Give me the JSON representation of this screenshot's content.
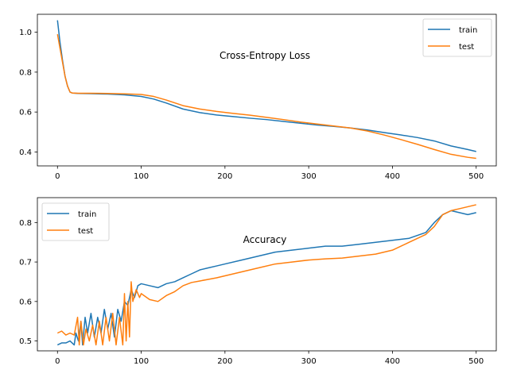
{
  "chart_data": [
    {
      "type": "line",
      "title": "Cross-Entropy Loss",
      "xlabel": "",
      "ylabel": "",
      "xlim": [
        -24,
        524
      ],
      "ylim": [
        0.33,
        1.09
      ],
      "xticks": [
        0,
        100,
        200,
        300,
        400,
        500
      ],
      "yticks": [
        0.4,
        0.6,
        0.8,
        1.0
      ],
      "ytick_labels": [
        "0.4",
        "0.6",
        "0.8",
        "1.0"
      ],
      "grid": false,
      "legend": "top-right",
      "series": [
        {
          "name": "train",
          "color": "#1f77b4",
          "x": [
            0,
            3,
            6,
            9,
            12,
            15,
            18,
            25,
            40,
            60,
            80,
            100,
            115,
            130,
            150,
            170,
            190,
            210,
            230,
            250,
            270,
            290,
            310,
            330,
            350,
            370,
            390,
            410,
            430,
            450,
            470,
            490,
            500
          ],
          "y": [
            1.06,
            0.95,
            0.86,
            0.78,
            0.73,
            0.7,
            0.695,
            0.693,
            0.692,
            0.69,
            0.686,
            0.678,
            0.665,
            0.645,
            0.615,
            0.597,
            0.585,
            0.577,
            0.569,
            0.562,
            0.553,
            0.544,
            0.535,
            0.528,
            0.52,
            0.51,
            0.497,
            0.485,
            0.472,
            0.455,
            0.43,
            0.412,
            0.402
          ]
        },
        {
          "name": "test",
          "color": "#ff7f0e",
          "x": [
            0,
            3,
            6,
            9,
            12,
            15,
            18,
            25,
            40,
            60,
            80,
            100,
            115,
            130,
            150,
            170,
            190,
            210,
            230,
            250,
            270,
            290,
            310,
            330,
            350,
            370,
            390,
            410,
            430,
            450,
            470,
            490,
            500
          ],
          "y": [
            0.99,
            0.92,
            0.85,
            0.78,
            0.73,
            0.7,
            0.695,
            0.694,
            0.694,
            0.693,
            0.691,
            0.688,
            0.678,
            0.66,
            0.632,
            0.615,
            0.603,
            0.593,
            0.584,
            0.573,
            0.562,
            0.55,
            0.54,
            0.53,
            0.52,
            0.505,
            0.485,
            0.462,
            0.438,
            0.412,
            0.388,
            0.373,
            0.368
          ]
        }
      ]
    },
    {
      "type": "line",
      "title": "Accuracy",
      "xlabel": "",
      "ylabel": "",
      "xlim": [
        -24,
        524
      ],
      "ylim": [
        0.475,
        0.863
      ],
      "xticks": [
        0,
        100,
        200,
        300,
        400,
        500
      ],
      "yticks": [
        0.5,
        0.6,
        0.7,
        0.8
      ],
      "ytick_labels": [
        "0.5",
        "0.6",
        "0.7",
        "0.8"
      ],
      "grid": false,
      "legend": "top-left",
      "series": [
        {
          "name": "train",
          "color": "#1f77b4",
          "x": [
            0,
            5,
            10,
            15,
            20,
            22,
            25,
            28,
            30,
            33,
            36,
            40,
            44,
            48,
            52,
            56,
            60,
            64,
            68,
            72,
            76,
            80,
            84,
            88,
            92,
            96,
            100,
            110,
            120,
            130,
            140,
            150,
            160,
            170,
            180,
            190,
            200,
            220,
            240,
            260,
            280,
            300,
            320,
            340,
            360,
            380,
            400,
            420,
            440,
            450,
            460,
            470,
            480,
            490,
            500
          ],
          "y": [
            0.49,
            0.495,
            0.495,
            0.5,
            0.49,
            0.52,
            0.5,
            0.55,
            0.49,
            0.56,
            0.52,
            0.57,
            0.51,
            0.56,
            0.52,
            0.58,
            0.53,
            0.57,
            0.51,
            0.58,
            0.55,
            0.6,
            0.59,
            0.63,
            0.61,
            0.64,
            0.645,
            0.64,
            0.635,
            0.645,
            0.65,
            0.66,
            0.67,
            0.68,
            0.685,
            0.69,
            0.695,
            0.705,
            0.715,
            0.725,
            0.73,
            0.735,
            0.74,
            0.74,
            0.745,
            0.75,
            0.755,
            0.76,
            0.775,
            0.8,
            0.82,
            0.83,
            0.825,
            0.82,
            0.825
          ]
        },
        {
          "name": "test",
          "color": "#ff7f0e",
          "x": [
            0,
            5,
            10,
            15,
            20,
            24,
            26,
            28,
            31,
            34,
            38,
            42,
            46,
            50,
            54,
            58,
            62,
            66,
            70,
            74,
            78,
            80,
            82,
            84,
            86,
            88,
            90,
            94,
            98,
            100,
            110,
            120,
            130,
            140,
            150,
            160,
            170,
            180,
            190,
            200,
            220,
            240,
            260,
            280,
            300,
            320,
            340,
            360,
            380,
            400,
            420,
            440,
            450,
            460,
            470,
            480,
            490,
            500
          ],
          "y": [
            0.52,
            0.525,
            0.515,
            0.52,
            0.515,
            0.56,
            0.49,
            0.55,
            0.49,
            0.53,
            0.5,
            0.54,
            0.49,
            0.55,
            0.49,
            0.56,
            0.5,
            0.57,
            0.49,
            0.56,
            0.49,
            0.62,
            0.5,
            0.6,
            0.51,
            0.65,
            0.6,
            0.63,
            0.61,
            0.62,
            0.605,
            0.6,
            0.615,
            0.625,
            0.64,
            0.648,
            0.652,
            0.656,
            0.66,
            0.665,
            0.675,
            0.685,
            0.695,
            0.7,
            0.705,
            0.708,
            0.71,
            0.715,
            0.72,
            0.73,
            0.75,
            0.77,
            0.79,
            0.82,
            0.83,
            0.835,
            0.84,
            0.845
          ]
        }
      ]
    }
  ]
}
